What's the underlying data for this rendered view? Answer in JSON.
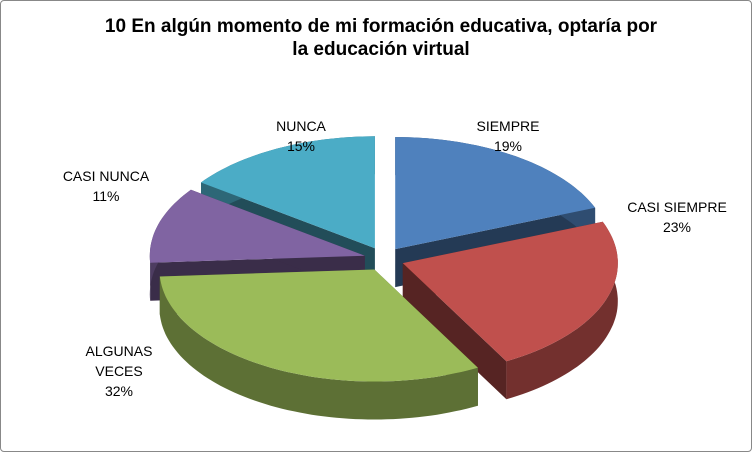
{
  "chart_data": {
    "type": "pie3d",
    "title": "10 En algún momento de mi formación educativa, optaría por la educación virtual",
    "categories": [
      "SIEMPRE",
      "CASI SIEMPRE",
      "ALGUNAS VECES",
      "CASI NUNCA",
      "NUNCA"
    ],
    "values": [
      19,
      23,
      32,
      11,
      15
    ],
    "value_labels": [
      "19%",
      "23%",
      "32%",
      "11%",
      "15%"
    ],
    "colors": [
      "#4f81bd",
      "#c0504d",
      "#9bbb59",
      "#8064a2",
      "#4bacc6"
    ]
  }
}
